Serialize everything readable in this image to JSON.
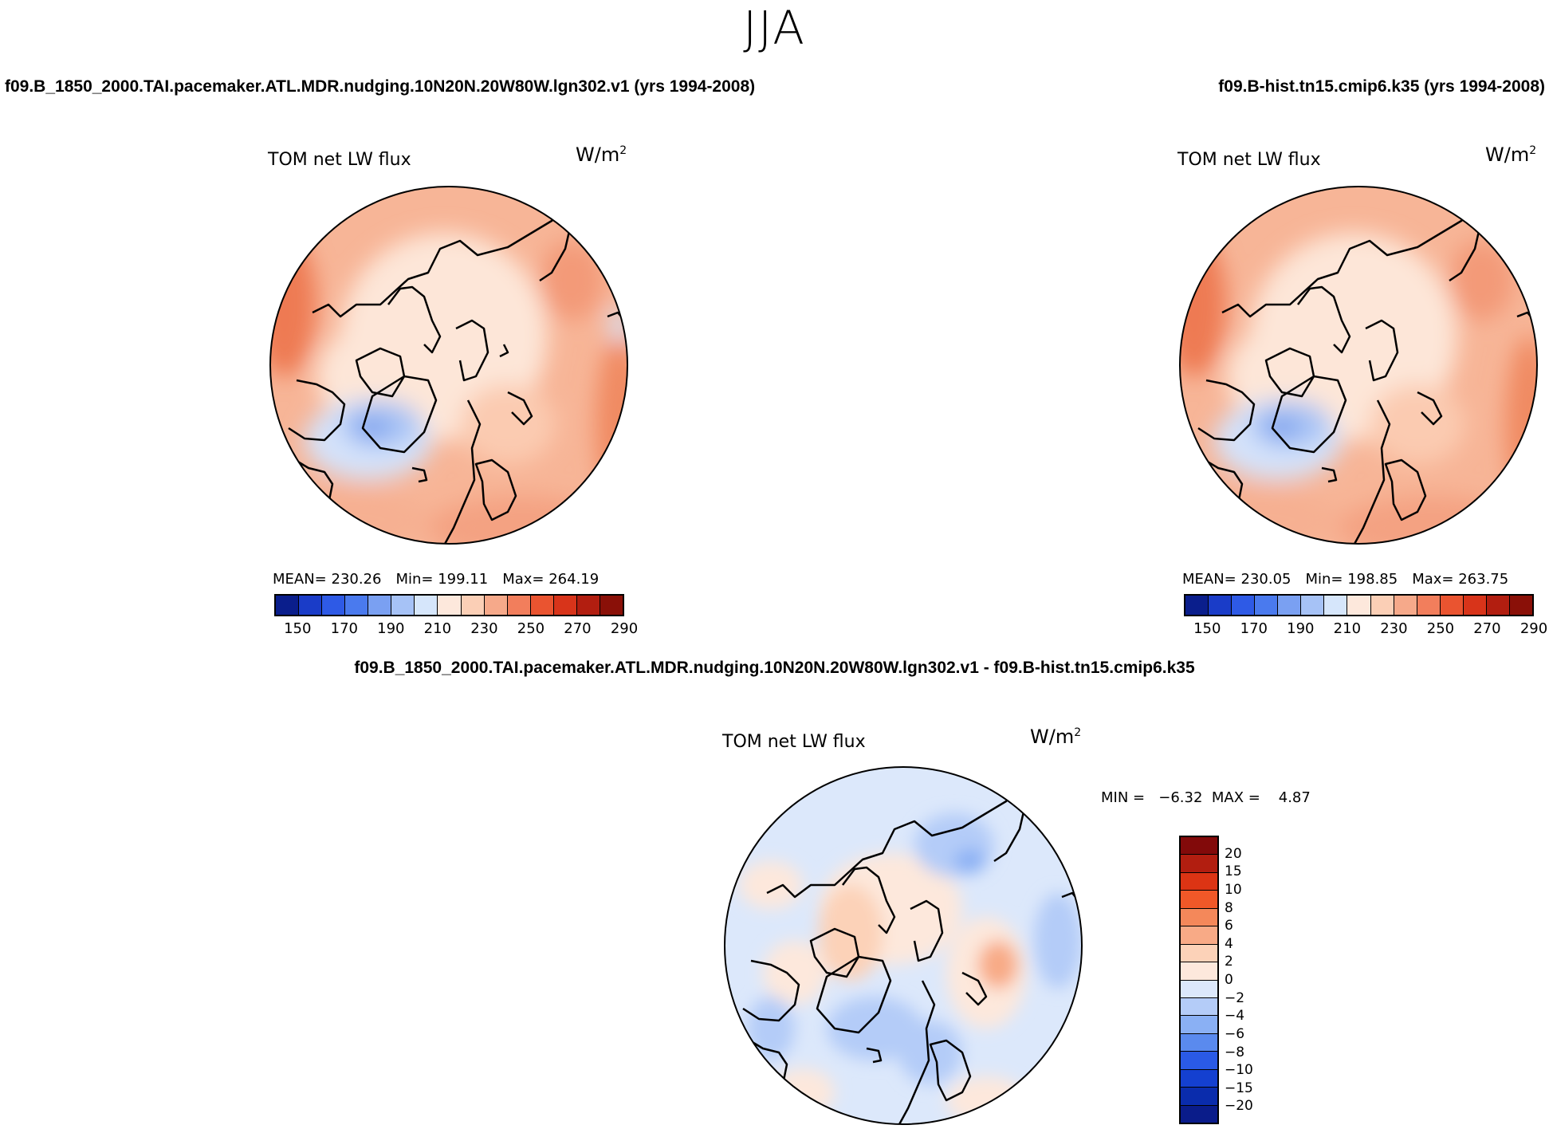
{
  "title": "JJA",
  "panels": {
    "left": {
      "case": "f09.B_1850_2000.TAI.pacemaker.ATL.MDR.nudging.10N20N.20W80W.lgn302.v1 (yrs 1994-2008)",
      "variable": "TOM net LW flux",
      "unit_base": "W/m",
      "unit_exp": "2",
      "mean": "MEAN= 230.26",
      "min": "Min= 199.11",
      "max": "Max= 264.19"
    },
    "right": {
      "case": "f09.B-hist.tn15.cmip6.k35 (yrs 1994-2008)",
      "variable": "TOM net LW flux",
      "unit_base": "W/m",
      "unit_exp": "2",
      "mean": "MEAN= 230.05",
      "min": "Min= 198.85",
      "max": "Max= 263.75"
    },
    "diff": {
      "case": "f09.B_1850_2000.TAI.pacemaker.ATL.MDR.nudging.10N20N.20W80W.lgn302.v1 - f09.B-hist.tn15.cmip6.k35",
      "variable": "TOM net LW flux",
      "unit_base": "W/m",
      "unit_exp": "2",
      "minmax": "MIN =   −6.32  MAX =    4.87"
    }
  },
  "colorbar_abs": {
    "colors": [
      "#0a1e8c",
      "#1a3cc8",
      "#2e5ae6",
      "#4a7aee",
      "#7aa0f2",
      "#a6c2f6",
      "#d6e6fb",
      "#fde8dc",
      "#fbcfb6",
      "#f6a98a",
      "#f27e5c",
      "#ea5430",
      "#d8341a",
      "#b21e10",
      "#8a1008"
    ],
    "ticks": [
      "150",
      "170",
      "190",
      "210",
      "230",
      "250",
      "270",
      "290"
    ]
  },
  "colorbar_diff": {
    "colors": [
      "#820a0a",
      "#b21e10",
      "#dc3414",
      "#f05828",
      "#f4885a",
      "#f8aa86",
      "#fcd2b8",
      "#fde8dc",
      "#dce8fb",
      "#b4ccf8",
      "#8ab0f4",
      "#5a8aee",
      "#2a5ae6",
      "#1440d0",
      "#0a2cac",
      "#0a1c8a"
    ],
    "labels": [
      "20",
      "15",
      "10",
      "8",
      "6",
      "4",
      "2",
      "0",
      "−2",
      "−4",
      "−6",
      "−8",
      "−10",
      "−15",
      "−20"
    ]
  }
}
